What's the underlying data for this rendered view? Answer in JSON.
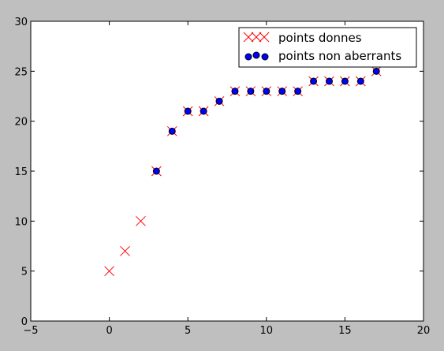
{
  "chart_data": {
    "type": "scatter",
    "title": "",
    "xlabel": "",
    "ylabel": "",
    "xlim": [
      -5,
      20
    ],
    "ylim": [
      0,
      30
    ],
    "x_ticks": [
      "−5",
      "0",
      "5",
      "10",
      "15",
      "20"
    ],
    "y_ticks": [
      "0",
      "5",
      "10",
      "15",
      "20",
      "25",
      "30"
    ],
    "grid": false,
    "legend_position": "top-right",
    "series": [
      {
        "name": "points donnes",
        "marker": "x",
        "color": "#ff0000",
        "x": [
          0,
          1,
          2,
          3,
          4,
          5,
          6,
          7,
          8,
          9,
          10,
          11,
          12,
          13,
          14,
          15,
          16,
          17
        ],
        "y": [
          5,
          7,
          10,
          15,
          19,
          21,
          21,
          22,
          23,
          23,
          23,
          23,
          23,
          24,
          24,
          24,
          24,
          25
        ]
      },
      {
        "name": "points non aberrants",
        "marker": "o",
        "color": "#0000ff",
        "x": [
          3,
          4,
          5,
          6,
          7,
          8,
          9,
          10,
          11,
          12,
          13,
          14,
          15,
          16,
          17
        ],
        "y": [
          15,
          19,
          21,
          21,
          22,
          23,
          23,
          23,
          23,
          23,
          24,
          24,
          24,
          24,
          25
        ]
      }
    ]
  }
}
